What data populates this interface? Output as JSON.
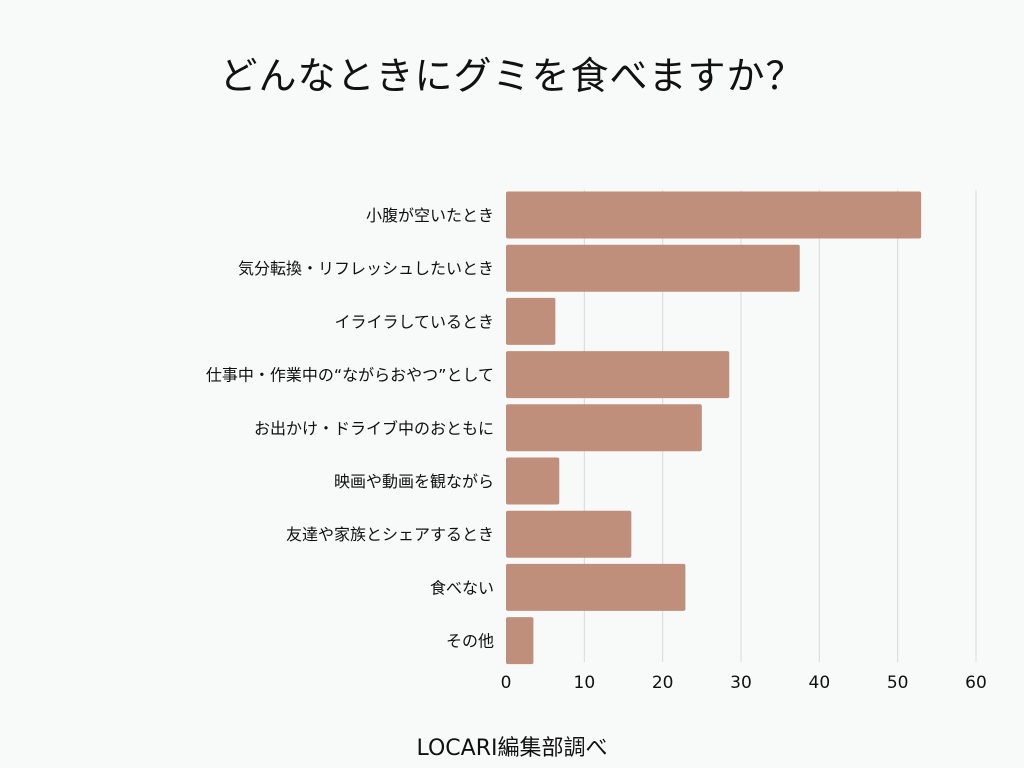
{
  "title": "どんなときにグミを食べますか？",
  "source": "LOCARI編集部調べ",
  "colors": {
    "bar": "#bf8f7b",
    "grid": "#d9d9d9",
    "background": "#f8f9f9",
    "text": "#111111"
  },
  "chart_data": {
    "type": "bar",
    "orientation": "horizontal",
    "title": "どんなときにグミを食べますか？",
    "categories": [
      "小腹が空いたとき",
      "気分転換・リフレッシュしたいとき",
      "イライラしているとき",
      "仕事中・作業中の“ながらおやつ”として",
      "お出かけ・ドライブ中のおともに",
      "映画や動画を観ながら",
      "友達や家族とシェアするとき",
      "食べない",
      "その他"
    ],
    "values": [
      53,
      37.5,
      6.3,
      28.5,
      25,
      6.8,
      16,
      22.9,
      3.5
    ],
    "xlim": [
      0,
      60
    ],
    "xticks": [
      0,
      10,
      20,
      30,
      40,
      50,
      60
    ],
    "grid": true,
    "legend": false
  }
}
